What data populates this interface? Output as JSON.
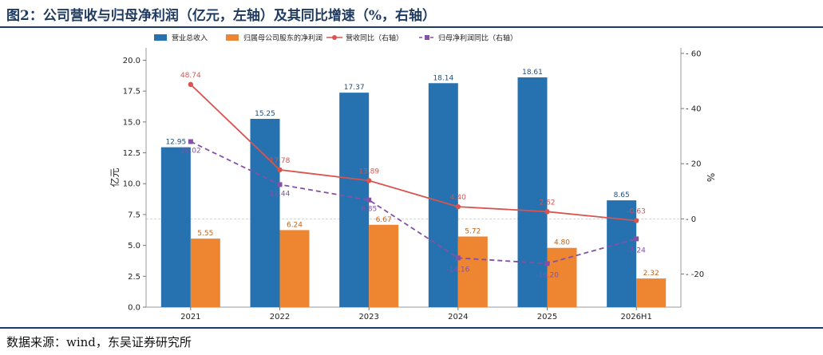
{
  "figure": {
    "title": "图2：公司营收与归母净利润（亿元，左轴）及其同比增速（%，右轴）",
    "source": "数据来源：wind，东吴证券研究所"
  },
  "chart_data": {
    "type": "bar",
    "categories": [
      "2021",
      "2022",
      "2023",
      "2024",
      "2025",
      "2026H1"
    ],
    "series": [
      {
        "name": "营业总收入",
        "type": "bar",
        "axis": "left",
        "color": "#2672b0",
        "values": [
          12.95,
          15.25,
          17.37,
          18.14,
          18.61,
          8.65
        ]
      },
      {
        "name": "归属母公司股东的净利润",
        "type": "bar",
        "axis": "left",
        "color": "#ee8531",
        "values": [
          5.55,
          6.24,
          6.67,
          5.72,
          4.8,
          2.32
        ]
      },
      {
        "name": "营收同比（右轴）",
        "type": "line",
        "axis": "right",
        "color": "#d9534f",
        "values": [
          48.74,
          17.78,
          13.89,
          4.4,
          2.62,
          -0.63
        ]
      },
      {
        "name": "归母净利润同比（右轴）",
        "type": "line",
        "axis": "right",
        "color": "#8551a8",
        "values": [
          28.02,
          12.44,
          6.85,
          -14.16,
          -16.2,
          -7.24
        ]
      }
    ],
    "xlabel": "",
    "ylabel": "亿元",
    "ylabel_right": "%",
    "ylim": [
      0,
      21
    ],
    "ylim_right": [
      -32,
      62
    ],
    "yticks": [
      0.0,
      2.5,
      5.0,
      7.5,
      10.0,
      12.5,
      15.0,
      17.5,
      20.0
    ],
    "yticks_right": [
      -20,
      0,
      20,
      40,
      60
    ],
    "zero_line_right": true,
    "legend_position": "top"
  }
}
